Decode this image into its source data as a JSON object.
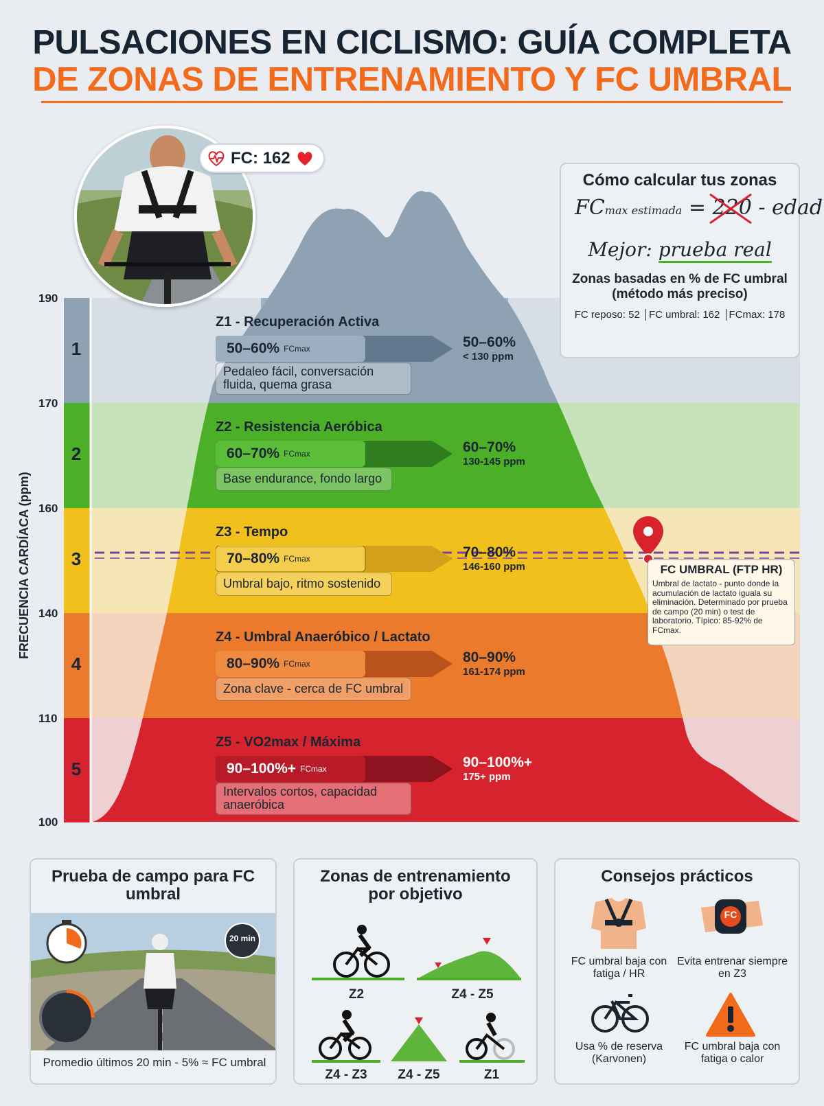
{
  "title": {
    "line1": "PULSACIONES EN CICLISMO: GUÍA COMPLETA",
    "line2": "DE ZONAS DE ENTRENAMIENTO Y FC UMBRAL"
  },
  "badge": {
    "label": "FC: 162"
  },
  "axis": {
    "ylabel": "FRECUENCIA CARDÍACA (ppm)",
    "ticks": [
      "190",
      "170",
      "160",
      "140",
      "110",
      "100"
    ]
  },
  "zones": [
    {
      "num": "1",
      "title": "Z1 - Recuperación Activa",
      "pill": "50–60%",
      "pill_unit": "FCmax",
      "desc": "Pedaleo fácil, conversación fluida, quema grasa",
      "pct": "50–60%",
      "ppm": "< 130 ppm",
      "color": "#8fa2b4"
    },
    {
      "num": "2",
      "title": "Z2 - Resistencia Aeróbica",
      "pill": "60–70%",
      "pill_unit": "FCmax",
      "desc": "Base endurance, fondo largo",
      "pct": "60–70%",
      "ppm": "130-145 ppm",
      "color": "#4caf28"
    },
    {
      "num": "3",
      "title": "Z3 - Tempo",
      "pill": "70–80%",
      "pill_unit": "FCmax",
      "desc": "Umbral bajo, ritmo sostenido",
      "pct": "70–80%",
      "ppm": "146-160 ppm",
      "color": "#f2c01c"
    },
    {
      "num": "4",
      "title": "Z4 - Umbral Anaeróbico / Lactato",
      "pill": "80–90%",
      "pill_unit": "FCmax",
      "desc": "Zona clave - cerca de FC umbral",
      "pct": "80–90%",
      "ppm": "161-174 ppm",
      "color": "#eb7a2c"
    },
    {
      "num": "5",
      "title": "Z5 - VO2max / Máxima",
      "pill": "90–100%+",
      "pill_unit": "FCmax",
      "desc": "Intervalos cortos, capacidad anaeróbica",
      "pct": "90–100%+",
      "ppm": "175+ ppm",
      "color": "#d6232e"
    }
  ],
  "calc": {
    "title": "Cómo calcular tus zonas",
    "formula_fc": "FC",
    "formula_sub": "max estimada",
    "formula_eq": "=",
    "formula_num": "220",
    "formula_rest": "- edad",
    "better": "Mejor:",
    "better_rest": "prueba real",
    "zones_note": "Zonas basadas en % de FC umbral (método más preciso)",
    "stats": [
      "FC reposo: 52",
      "FC umbral: 162",
      "FCmax: 178"
    ]
  },
  "ftp": {
    "title": "FC UMBRAL (FTP HR)",
    "body": "Umbral de lactato - punto donde la acumulación de lactato iguala su eliminación. Determinado por prueba de campo (20 min) o test de laboratorio. Típico: 85-92% de FCmax."
  },
  "cards": {
    "field": {
      "title": "Prueba de campo para FC umbral",
      "timer": "20 min",
      "caption": "Promedio últimos 20 min - 5% ≈ FC umbral"
    },
    "objectives": {
      "title": "Zonas de entrenamiento por objetivo",
      "labels": [
        "Z2",
        "Z4 - Z5",
        "Z4 - Z3",
        "Z4 - Z5",
        "Z1"
      ]
    },
    "tips": {
      "title": "Consejos prácticos",
      "items": [
        "FC umbral baja con fatiga / HR",
        "Evita entrenar siempre en Z3",
        "Usa % de reserva (Karvonen)",
        "FC umbral baja con fatiga o calor"
      ],
      "watch_label": "FC"
    }
  }
}
